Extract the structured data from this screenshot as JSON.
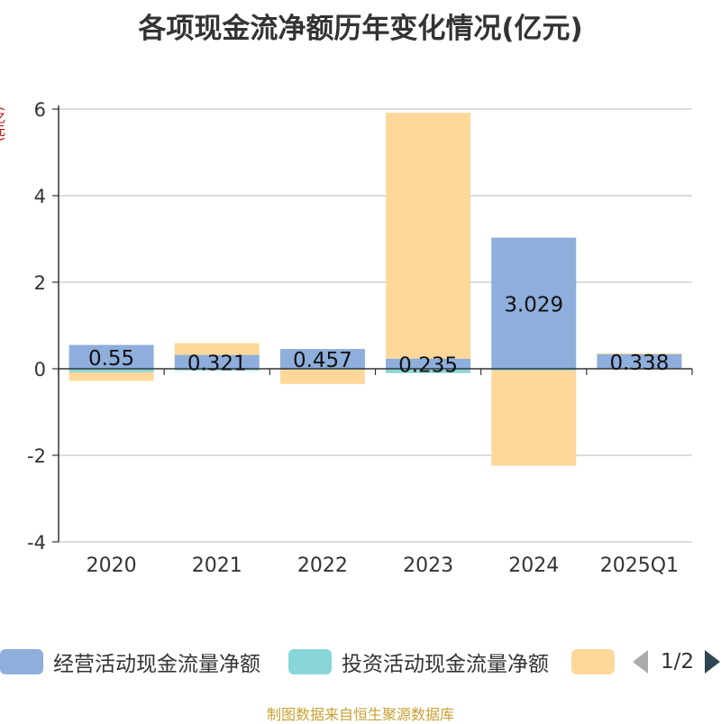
{
  "title": "各项现金流净额历年变化情况(亿元)",
  "unit": "(亿元)",
  "source": "制图数据来自恒生聚源数据库",
  "legend": {
    "items": [
      {
        "label": "经营活动现金流量净额",
        "color": "#8eaedc"
      },
      {
        "label": "投资活动现金流量净额",
        "color": "#88d6da"
      },
      {
        "label": "",
        "color": "#fdd89a"
      }
    ],
    "page": "1/2"
  },
  "chart_data": {
    "type": "bar",
    "stacked": true,
    "categories": [
      "2020",
      "2021",
      "2022",
      "2023",
      "2024",
      "2025Q1"
    ],
    "ylim": [
      -4,
      6
    ],
    "yticks": [
      -4,
      -2,
      0,
      2,
      4,
      6
    ],
    "grid": true,
    "legend_position": "bottom",
    "series": [
      {
        "name": "经营活动现金流量净额",
        "color": "#8eaedc",
        "values": [
          0.55,
          0.321,
          0.457,
          0.235,
          3.029,
          0.338
        ],
        "labels": [
          "0.55",
          "0.321",
          "0.457",
          "0.235",
          "3.029",
          "0.338"
        ]
      },
      {
        "name": "投资活动现金流量净额",
        "color": "#88d6da",
        "values": [
          -0.08,
          -0.04,
          -0.02,
          -0.1,
          -0.04,
          -0.01
        ]
      },
      {
        "name": "",
        "color": "#fdd89a",
        "values": [
          -0.2,
          0.27,
          -0.33,
          5.68,
          -2.2,
          0.02
        ]
      }
    ]
  }
}
